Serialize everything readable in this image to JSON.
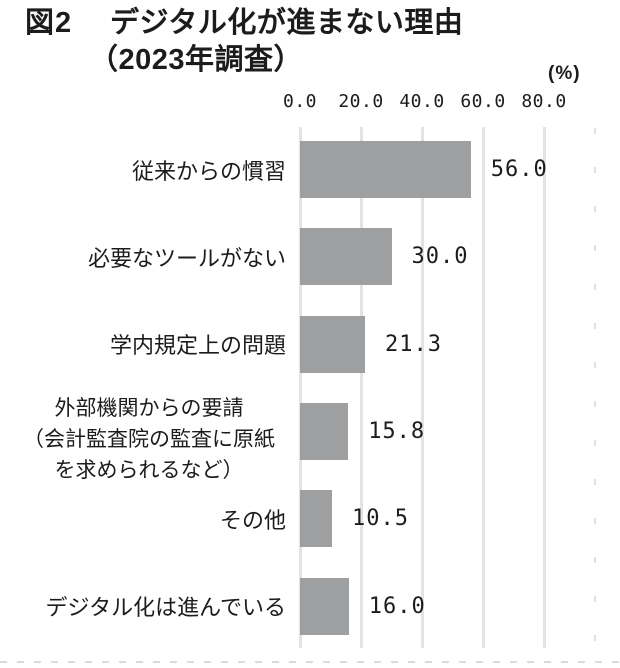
{
  "figure": {
    "tag": "図2",
    "title": "デジタル化が進まない理由",
    "subtitle": "（2023年調査）",
    "unit_label": "(%)"
  },
  "chart_data": {
    "type": "bar",
    "orientation": "horizontal",
    "title": "図2 デジタル化が進まない理由（2023年調査）",
    "xlabel": "(%)",
    "xlim": [
      0,
      80
    ],
    "grid": true,
    "legend": "none",
    "x_ticks": [
      0,
      20,
      40,
      60,
      80
    ],
    "x_tick_labels": [
      "0.0",
      "20.0",
      "40.0",
      "60.0",
      "80.0"
    ],
    "categories": [
      "従来からの慣習",
      "必要なツールがない",
      "学内規定上の問題",
      "外部機関からの要請（会計監査院の監査に原紙を求められるなど）",
      "その他",
      "デジタル化は進んでいる"
    ],
    "category_lines": [
      [
        "従来からの慣習"
      ],
      [
        "必要なツールがない"
      ],
      [
        "学内規定上の問題"
      ],
      [
        "外部機関からの要請",
        "（会計監査院の監査に原紙",
        "を求められるなど）"
      ],
      [
        "その他"
      ],
      [
        "デジタル化は進んでいる"
      ]
    ],
    "values": [
      56.0,
      30.0,
      21.3,
      15.8,
      10.5,
      16.0
    ],
    "value_labels": [
      "56.0",
      "30.0",
      "21.3",
      "15.8",
      "10.5",
      "16.0"
    ],
    "bar_color": "#9d9fa0",
    "gridline_color": "#e3e3e4",
    "text_color": "#1c1c1c"
  }
}
